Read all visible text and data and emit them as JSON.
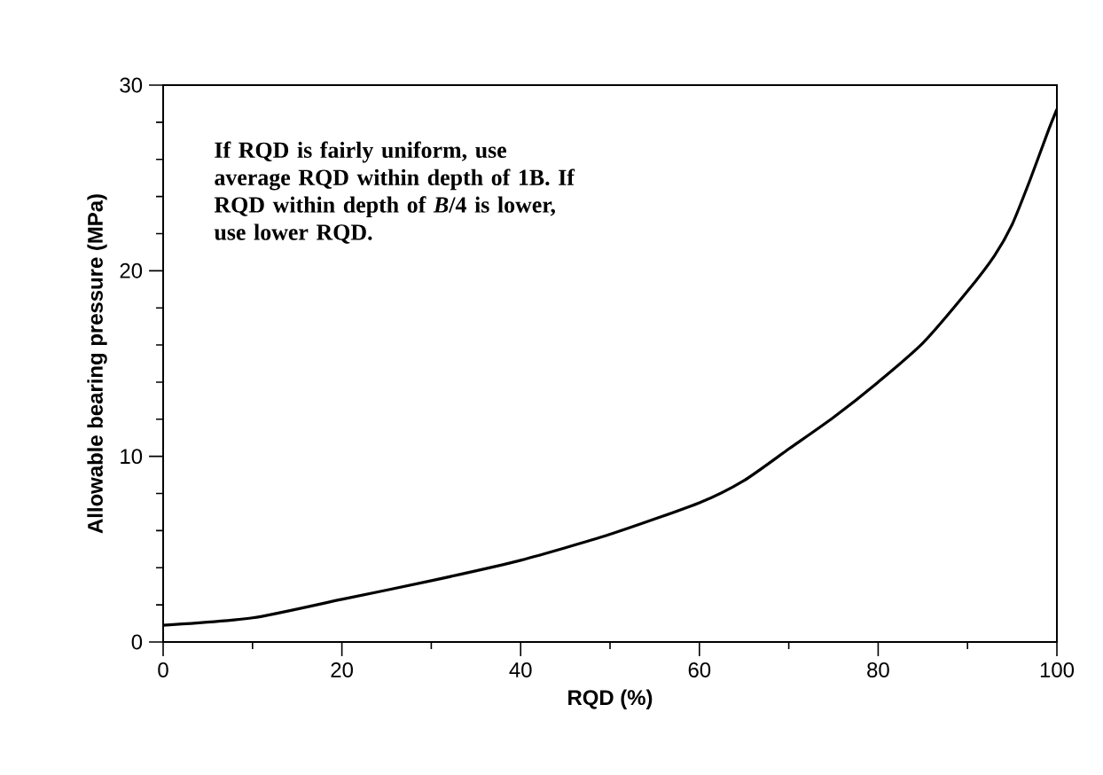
{
  "chart_data": {
    "type": "line",
    "xlabel": "RQD (%)",
    "ylabel": "Allowable bearing pressure (MPa)",
    "x": [
      0,
      10,
      20,
      30,
      40,
      50,
      60,
      65,
      70,
      75,
      80,
      85,
      90,
      93,
      95,
      97,
      99,
      100
    ],
    "series": [
      {
        "color": "#000000",
        "values": [
          0.9,
          1.3,
          2.3,
          3.3,
          4.4,
          5.8,
          7.5,
          8.7,
          10.4,
          12.1,
          14,
          16.1,
          18.9,
          20.8,
          22.5,
          24.9,
          27.5,
          28.7
        ]
      }
    ],
    "xlim": [
      0,
      100
    ],
    "ylim": [
      0,
      30
    ],
    "xticks": [
      0,
      20,
      40,
      60,
      80,
      100
    ],
    "yticks": [
      0,
      10,
      20,
      30
    ],
    "grid": false,
    "marker": "none",
    "line_style": "solid",
    "annotations": [
      "If RQD is fairly uniform, use average RQD within depth of 1B. If RQD within depth of *B*/4 is lower, use lower RQD."
    ]
  }
}
